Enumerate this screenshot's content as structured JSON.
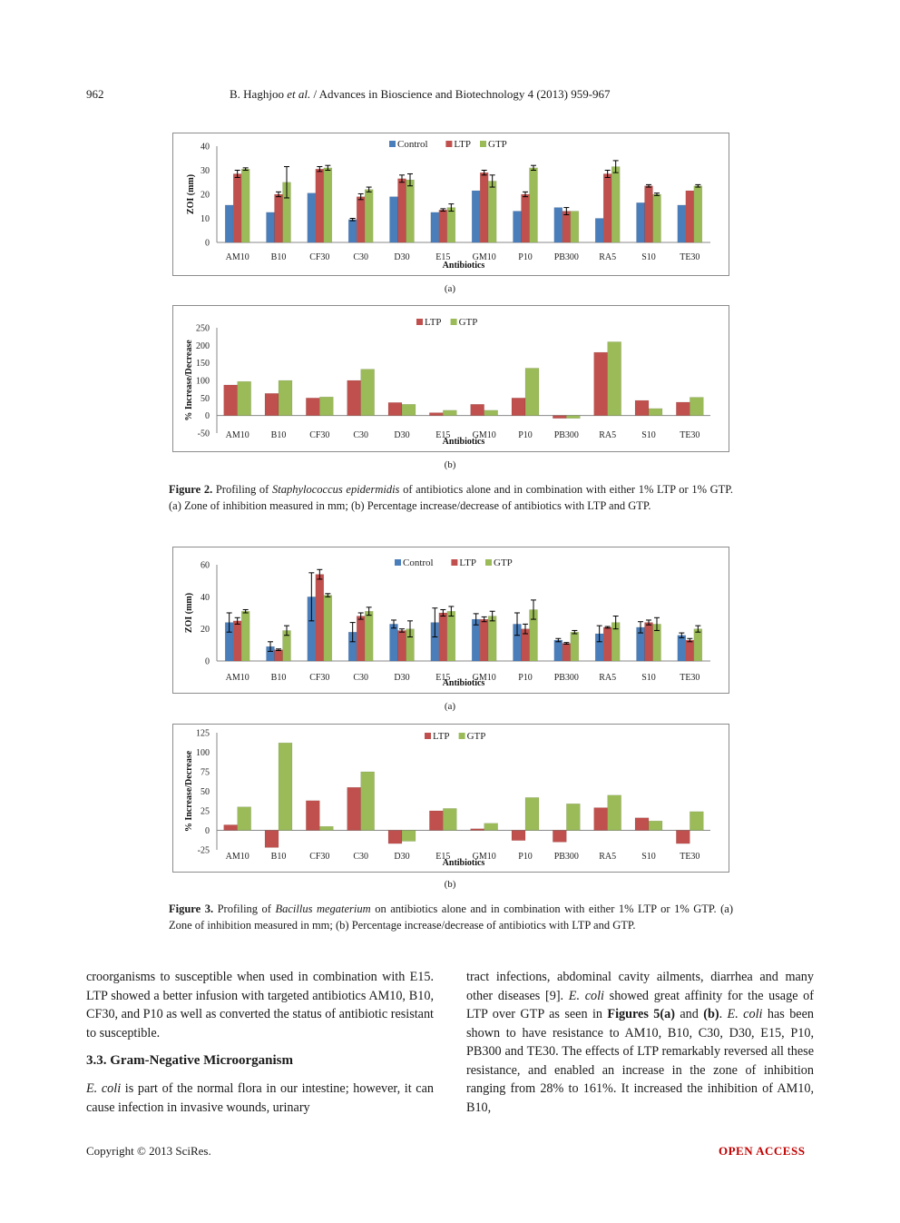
{
  "header": {
    "page_number": "962",
    "running_title_pre": "B. Haghjoo ",
    "running_title_em": "et al.",
    "running_title_post": " / Advances in Bioscience and Biotechnology 4 (2013) 959-967"
  },
  "colors": {
    "control": "#4a7ebb",
    "ltp": "#c0504d",
    "gtp": "#9bbb59",
    "open_access": "#c00000"
  },
  "figure2": {
    "sub_a": "(a)",
    "sub_b": "(b)",
    "caption_label": "Figure 2.",
    "caption_pre": " Profiling of ",
    "caption_em": "Staphylococcus epidermidis",
    "caption_post": " of antibiotics alone and in combination with either 1% LTP or 1% GTP. (a) Zone of inhibition measured in mm; (b) Percentage increase/decrease of antibiotics with LTP and GTP."
  },
  "figure3": {
    "sub_a": "(a)",
    "sub_b": "(b)",
    "caption_label": "Figure 3.",
    "caption_pre": " Profiling of ",
    "caption_em": "Bacillus megaterium",
    "caption_post": " on antibiotics alone and in combination with either 1% LTP or 1% GTP. (a) Zone of inhibition measured in mm; (b) Percentage increase/decrease of antibiotics with LTP and GTP."
  },
  "chart_data": [
    {
      "type": "bar",
      "xlabel": "Antibiotics",
      "ylabel": "ZOI (mm)",
      "ylim": [
        0,
        40
      ],
      "yticks": [
        0,
        10,
        20,
        30,
        40
      ],
      "legend_position": "top-center",
      "categories": [
        "AM10",
        "B10",
        "CF30",
        "C30",
        "D30",
        "E15",
        "GM10",
        "P10",
        "PB300",
        "RA5",
        "S10",
        "TE30"
      ],
      "series": [
        {
          "name": "Control",
          "values": [
            15.5,
            12.5,
            20.5,
            9.5,
            19,
            12.5,
            21.5,
            13,
            14.5,
            10,
            16.5,
            15.5
          ],
          "errors": [
            0,
            0,
            0,
            0.5,
            0,
            0,
            0,
            0,
            0,
            0,
            0,
            0
          ]
        },
        {
          "name": "LTP",
          "values": [
            28.5,
            20,
            30.5,
            19,
            26.5,
            13.5,
            29,
            20,
            13,
            28.5,
            23.5,
            21.5
          ],
          "errors": [
            1.5,
            1,
            1,
            1.2,
            1.5,
            0.5,
            1,
            1,
            1.5,
            1.5,
            0.5,
            0
          ]
        },
        {
          "name": "GTP",
          "values": [
            30.5,
            25,
            31,
            22,
            26,
            14.5,
            25.5,
            31,
            13,
            31.5,
            20,
            23.5
          ],
          "errors": [
            0.5,
            6.5,
            1,
            1,
            2.5,
            1.5,
            2.5,
            1,
            0,
            2.5,
            0.5,
            0.5
          ]
        }
      ]
    },
    {
      "type": "bar",
      "xlabel": "Antibiotics",
      "ylabel": "% Increase/Decrease",
      "ylim": [
        -50,
        250
      ],
      "yticks": [
        -50,
        0,
        50,
        100,
        150,
        200,
        250
      ],
      "legend_position": "top-center",
      "categories": [
        "AM10",
        "B10",
        "CF30",
        "C30",
        "D30",
        "E15",
        "GM10",
        "P10",
        "PB300",
        "RA5",
        "S10",
        "TE30"
      ],
      "series": [
        {
          "name": "LTP",
          "values": [
            87,
            63,
            50,
            100,
            37,
            8,
            32,
            50,
            -8,
            180,
            43,
            38
          ]
        },
        {
          "name": "GTP",
          "values": [
            97,
            100,
            53,
            132,
            32,
            15,
            15,
            135,
            -8,
            210,
            20,
            52
          ]
        }
      ]
    },
    {
      "type": "bar",
      "xlabel": "Antibiotics",
      "ylabel": "ZOI (mm)",
      "ylim": [
        0,
        60
      ],
      "yticks": [
        0,
        20,
        40,
        60
      ],
      "legend_position": "top-center",
      "categories": [
        "AM10",
        "B10",
        "CF30",
        "C30",
        "D30",
        "E15",
        "GM10",
        "P10",
        "PB300",
        "RA5",
        "S10",
        "TE30"
      ],
      "series": [
        {
          "name": "Control",
          "values": [
            24,
            9,
            40,
            18,
            23,
            24,
            26,
            23,
            13,
            17,
            21,
            16
          ],
          "errors": [
            6,
            3,
            15,
            6,
            2.5,
            9,
            3.5,
            7,
            1,
            5,
            3.5,
            1.5
          ]
        },
        {
          "name": "LTP",
          "values": [
            25,
            7,
            54,
            28,
            19,
            30,
            26,
            20,
            11,
            21,
            24,
            13
          ],
          "errors": [
            2,
            0.5,
            3,
            2,
            1,
            2,
            1.5,
            3,
            0.5,
            0.5,
            1.5,
            1
          ]
        },
        {
          "name": "GTP",
          "values": [
            31,
            19,
            41,
            31,
            20,
            31,
            28,
            32,
            18,
            24,
            23,
            20
          ],
          "errors": [
            1,
            3,
            1,
            2.5,
            5,
            3,
            3,
            6,
            1,
            4,
            4,
            2
          ]
        }
      ]
    },
    {
      "type": "bar",
      "xlabel": "Antibiotics",
      "ylabel": "% Increase/Decrease",
      "ylim": [
        -25,
        125
      ],
      "yticks": [
        -25,
        0,
        25,
        50,
        75,
        100,
        125
      ],
      "legend_position": "top-center",
      "categories": [
        "AM10",
        "B10",
        "CF30",
        "C30",
        "D30",
        "E15",
        "GM10",
        "P10",
        "PB300",
        "RA5",
        "S10",
        "TE30"
      ],
      "series": [
        {
          "name": "LTP",
          "values": [
            7,
            -22,
            38,
            55,
            -17,
            25,
            2,
            -13,
            -15,
            29,
            16,
            -17
          ]
        },
        {
          "name": "GTP",
          "values": [
            30,
            112,
            5,
            75,
            -14,
            28,
            9,
            42,
            34,
            45,
            12,
            24
          ]
        }
      ]
    }
  ],
  "body": {
    "left_p1": "croorganisms to susceptible when used in combination with E15. LTP showed a better infusion with targeted antibiotics AM10, B10, CF30, and P10 as well as converted the status of antibiotic resistant to susceptible.",
    "section_heading": "3.3. Gram-Negative Microorganism",
    "left_p2_em": "E. coli",
    "left_p2": " is part of the normal flora in our intestine; however, it can cause infection in invasive wounds, urinary",
    "right_p_a": "tract infections, abdominal cavity ailments, diarrhea and many other diseases [9]. ",
    "right_em1": "E. coli",
    "right_p_b": " showed great affinity for the usage of LTP over GTP as seen in ",
    "right_bold1": "Figures 5(a)",
    "right_p_c": " and ",
    "right_bold2": "(b)",
    "right_p_d": ". ",
    "right_em2": "E. coli",
    "right_p_e": " has been shown to have resistance to AM10, B10, C30, D30, E15, P10, PB300 and TE30. The effects of LTP remarkably reversed all these resistance, and enabled an increase in the zone of inhibition ranging from 28% to 161%. It increased the inhibition of AM10, B10,"
  },
  "footer": {
    "copyright": "Copyright © 2013 SciRes.",
    "open_access": "OPEN ACCESS"
  }
}
